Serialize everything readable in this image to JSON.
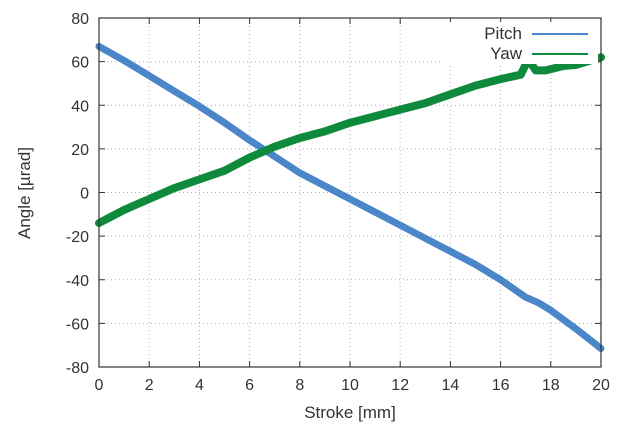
{
  "chart_data": {
    "type": "line",
    "title": "",
    "xlabel": "Stroke [mm]",
    "ylabel": "Angle [µrad]",
    "xlim": [
      0,
      20
    ],
    "ylim": [
      -80,
      80
    ],
    "x_ticks": [
      0,
      2,
      4,
      6,
      8,
      10,
      12,
      14,
      16,
      18,
      20
    ],
    "y_ticks": [
      -80,
      -60,
      -40,
      -20,
      0,
      20,
      40,
      60,
      80
    ],
    "x_tick_labels": [
      "0",
      "2",
      "4",
      "6",
      "8",
      "10",
      "12",
      "14",
      "16",
      "18",
      "20"
    ],
    "y_tick_labels": [
      "-80",
      "-60",
      "-40",
      "-20",
      "0",
      "20",
      "40",
      "60",
      "80"
    ],
    "grid": true,
    "legend_position": "top-right",
    "series": [
      {
        "name": "Pitch",
        "color": "#4a86c8",
        "x": [
          0,
          1,
          2,
          3,
          4,
          5,
          6,
          7,
          8,
          9,
          10,
          11,
          12,
          13,
          14,
          15,
          16,
          16.5,
          17,
          17.5,
          18,
          19,
          20
        ],
        "y": [
          67,
          60.5,
          53.5,
          46.5,
          39.5,
          32,
          24,
          16.5,
          9,
          3,
          -3,
          -9,
          -15,
          -21,
          -27,
          -33,
          -40,
          -44,
          -48,
          -50.5,
          -54,
          -62.5,
          -71.5
        ]
      },
      {
        "name": "Yaw",
        "color": "#0f8a3c",
        "x": [
          0,
          1,
          2,
          3,
          4,
          5,
          6,
          7,
          8,
          9,
          10,
          11,
          12,
          13,
          14,
          15,
          16,
          16.8,
          17.1,
          17.4,
          17.8,
          18.5,
          19,
          20
        ],
        "y": [
          -14,
          -8,
          -3,
          2,
          6,
          10,
          16,
          21,
          25,
          28,
          32,
          35,
          38,
          41,
          45,
          49,
          52,
          54,
          61,
          56,
          56,
          58,
          58.5,
          62
        ]
      }
    ]
  }
}
